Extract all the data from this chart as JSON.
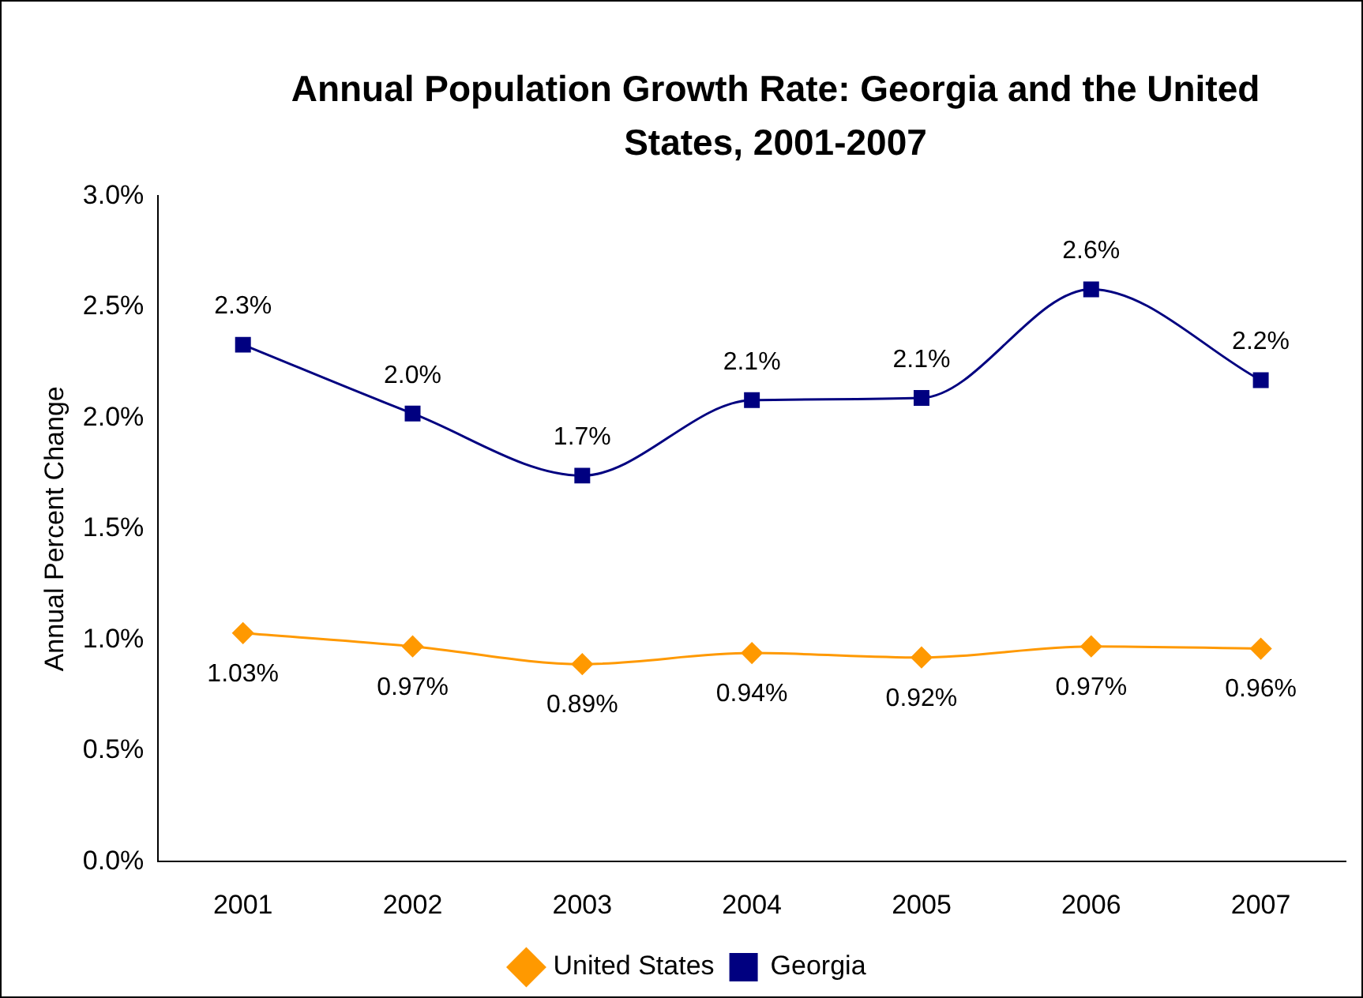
{
  "chart_data": {
    "type": "line",
    "title": "Annual Population Growth Rate: Georgia and the United States, 2001-2007",
    "ylabel": "Annual Percent Change",
    "categories": [
      "2001",
      "2002",
      "2003",
      "2004",
      "2005",
      "2006",
      "2007"
    ],
    "series": [
      {
        "name": "United States",
        "color": "#ff9900",
        "marker": "diamond",
        "values": [
          1.03,
          0.97,
          0.89,
          0.94,
          0.92,
          0.97,
          0.96
        ],
        "value_labels": [
          "1.03%",
          "0.97%",
          "0.89%",
          "0.94%",
          "0.92%",
          "0.97%",
          "0.96%"
        ]
      },
      {
        "name": "Georgia",
        "color": "#000080",
        "marker": "square",
        "values": [
          2.33,
          2.02,
          1.74,
          2.08,
          2.09,
          2.58,
          2.17
        ],
        "value_labels": [
          "2.3%",
          "2.0%",
          "1.7%",
          "2.1%",
          "2.1%",
          "2.6%",
          "2.2%"
        ]
      }
    ],
    "ylim": [
      0,
      3
    ],
    "yticks": [
      {
        "value": 0,
        "label": "0.0%"
      },
      {
        "value": 0.5,
        "label": "0.5%"
      },
      {
        "value": 1,
        "label": "1.0%"
      },
      {
        "value": 1.5,
        "label": "1.5%"
      },
      {
        "value": 2,
        "label": "2.0%"
      },
      {
        "value": 2.5,
        "label": "2.5%"
      },
      {
        "value": 3,
        "label": "3.0%"
      }
    ],
    "grid": false,
    "legend": "bottom"
  }
}
